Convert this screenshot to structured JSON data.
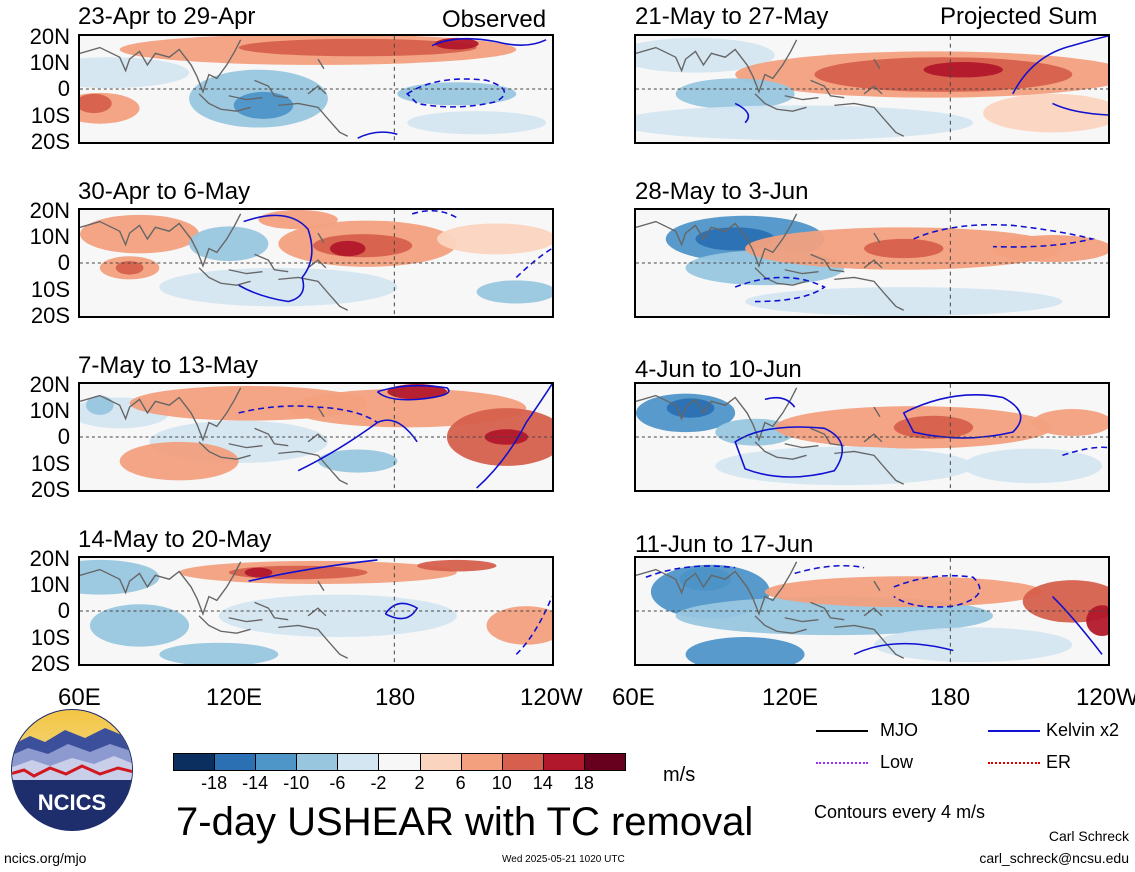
{
  "headers": {
    "left": "Observed",
    "right": "Projected Sum"
  },
  "panels_left": [
    {
      "title": "23-Apr to 29-Apr"
    },
    {
      "title": "30-Apr to 6-May"
    },
    {
      "title": "7-May to 13-May"
    },
    {
      "title": "14-May to 20-May"
    }
  ],
  "panels_right": [
    {
      "title": "21-May to 27-May"
    },
    {
      "title": "28-May to 3-Jun"
    },
    {
      "title": "4-Jun to 10-Jun"
    },
    {
      "title": "11-Jun to 17-Jun"
    }
  ],
  "lat_labels": [
    "20N",
    "10N",
    "0",
    "10S",
    "20S"
  ],
  "lon_labels": [
    "60E",
    "120E",
    "180",
    "120W"
  ],
  "colorbar": {
    "colors": [
      "#0b2f5e",
      "#2a70b3",
      "#4e95c8",
      "#98c6df",
      "#d4e6f1",
      "#f7f7f7",
      "#fbd4bf",
      "#f2a07e",
      "#d6604d",
      "#b2182b",
      "#67001f"
    ],
    "ticks": [
      "-18",
      "-14",
      "-10",
      "-6",
      "-2",
      "2",
      "6",
      "10",
      "14",
      "18"
    ],
    "units": "m/s"
  },
  "legend": {
    "items": [
      {
        "label": "MJO",
        "color": "#000000"
      },
      {
        "label": "Kelvin x2",
        "color": "#1010d0"
      },
      {
        "label": "Low",
        "color": "#9b30ff"
      },
      {
        "label": "ER",
        "color": "#e00000"
      }
    ],
    "contours": "Contours every 4 m/s"
  },
  "logo": {
    "text": "NCICS"
  },
  "title": "7-day USHEAR with TC removal",
  "footer": {
    "left": "ncics.org/mjo",
    "center": "Wed 2025-05-21 1020 UTC",
    "author": "Carl Schreck",
    "email": "carl_schreck@ncsu.edu"
  }
}
